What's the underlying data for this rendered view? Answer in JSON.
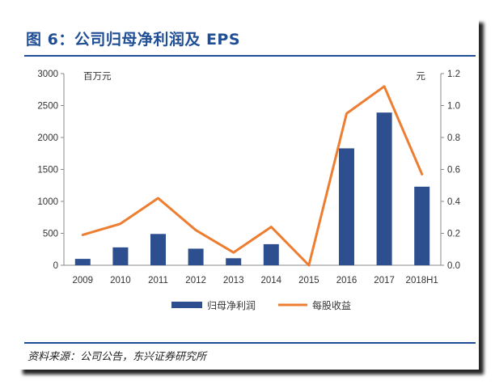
{
  "title": "图 6：公司归母净利润及 EPS",
  "source": "资料来源：公司公告，东兴证券研究所",
  "chart_data": {
    "type": "bar+line",
    "categories": [
      "2009",
      "2010",
      "2011",
      "2012",
      "2013",
      "2014",
      "2015",
      "2016",
      "2017",
      "2018H1"
    ],
    "series": [
      {
        "name": "归母净利润",
        "kind": "bar",
        "axis": "left",
        "color": "#2e4f8f",
        "values": [
          100,
          280,
          490,
          260,
          110,
          330,
          0,
          1830,
          2390,
          1230
        ]
      },
      {
        "name": "每股收益",
        "kind": "line",
        "axis": "right",
        "color": "#ed7d31",
        "values": [
          0.19,
          0.26,
          0.42,
          0.22,
          0.08,
          0.24,
          0.0,
          0.95,
          1.12,
          0.57
        ]
      }
    ],
    "y_left": {
      "unit": "百万元",
      "ylim": [
        0,
        3000
      ],
      "ticks": [
        "0",
        "500",
        "1000",
        "1500",
        "2000",
        "2500",
        "3000"
      ]
    },
    "y_right": {
      "unit": "元",
      "ylim": [
        0,
        1.2
      ],
      "ticks": [
        "0.0",
        "0.2",
        "0.4",
        "0.6",
        "0.8",
        "1.0",
        "1.2"
      ]
    },
    "legend": {
      "position": "bottom",
      "items": [
        "归母净利润",
        "每股收益"
      ]
    },
    "grid": false
  }
}
